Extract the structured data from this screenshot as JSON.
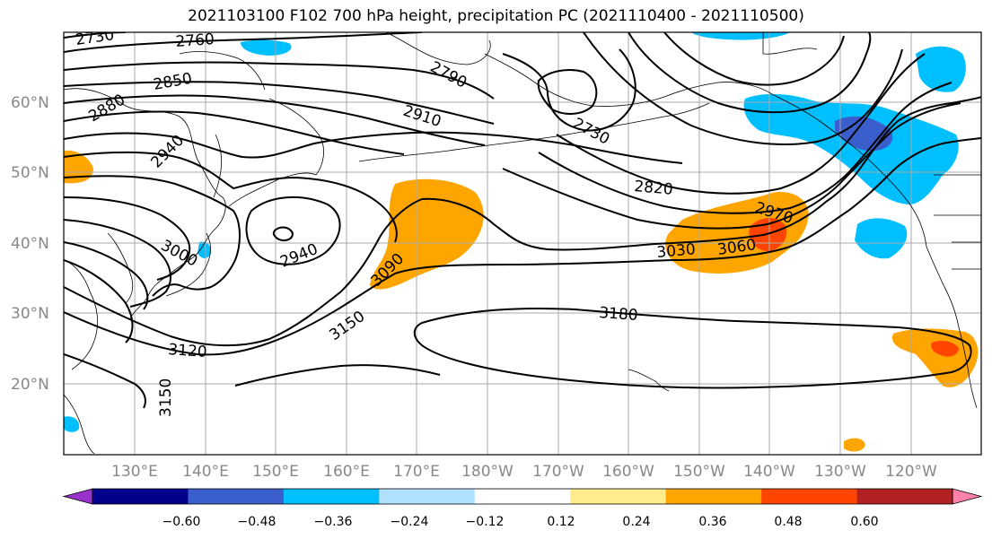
{
  "title": "2021103100 F102 700 hPa height, precipitation PC (2021110400 - 2021110500)",
  "latitude_labels": [
    "60°N",
    "50°N",
    "40°N",
    "30°N",
    "20°N"
  ],
  "longitude_labels": [
    "130°E",
    "140°E",
    "150°E",
    "160°E",
    "170°E",
    "180°W",
    "170°W",
    "160°W",
    "150°W",
    "140°W",
    "130°W",
    "120°W"
  ],
  "contour_labels": [
    "2730",
    "2760",
    "2850",
    "2880",
    "2940",
    "2790",
    "2910",
    "2730",
    "2820",
    "2970",
    "3000",
    "2940",
    "3090",
    "3030",
    "3060",
    "3150",
    "3180",
    "3120",
    "3150"
  ],
  "colorbar": {
    "ticks": [
      "−0.60",
      "−0.48",
      "−0.36",
      "−0.24",
      "−0.12",
      "0.12",
      "0.24",
      "0.36",
      "0.48",
      "0.60"
    ],
    "colors": [
      "#9932cc",
      "#00008b",
      "#3a5fcd",
      "#00bfff",
      "#b0e2ff",
      "#ffffff",
      "#ffec8b",
      "#ffa500",
      "#ff4500",
      "#b22222",
      "#ff82ab"
    ]
  },
  "colors": {
    "orange": "#ffa500",
    "red": "#ff4500",
    "light_blue": "#00bfff",
    "mid_blue": "#3a5fcd",
    "grid": "#aaaaaa"
  }
}
